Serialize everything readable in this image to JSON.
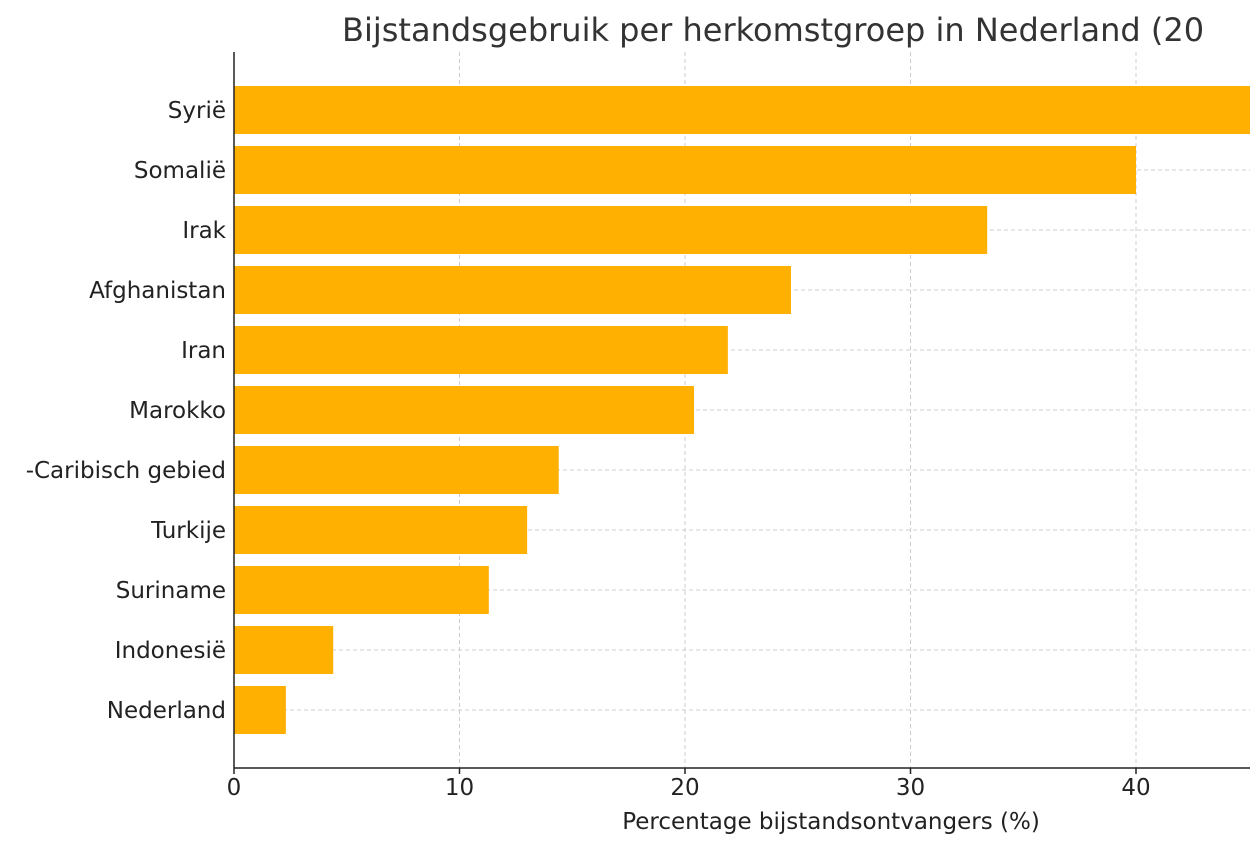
{
  "chart_data": {
    "type": "bar",
    "orientation": "horizontal",
    "title": "Bijstandsgebruik per herkomstgroep in Nederland (20",
    "xlabel": "Percentage bijstandsontvangers (%)",
    "ylabel": "",
    "xlim": [
      0,
      45
    ],
    "xticks": [
      "0",
      "10",
      "20",
      "30",
      "40"
    ],
    "grid": true,
    "bar_color": "#FFB000",
    "categories": [
      "Syrië",
      "Somalië",
      "Irak",
      "Afghanistan",
      "Iran",
      "Marokko",
      "-Caribisch gebied",
      "Turkije",
      "Suriname",
      "Indonesië",
      "Nederland"
    ],
    "values": [
      46,
      40,
      33.4,
      24.7,
      21.9,
      20.4,
      14.4,
      13,
      11.3,
      4.4,
      2.3
    ]
  }
}
